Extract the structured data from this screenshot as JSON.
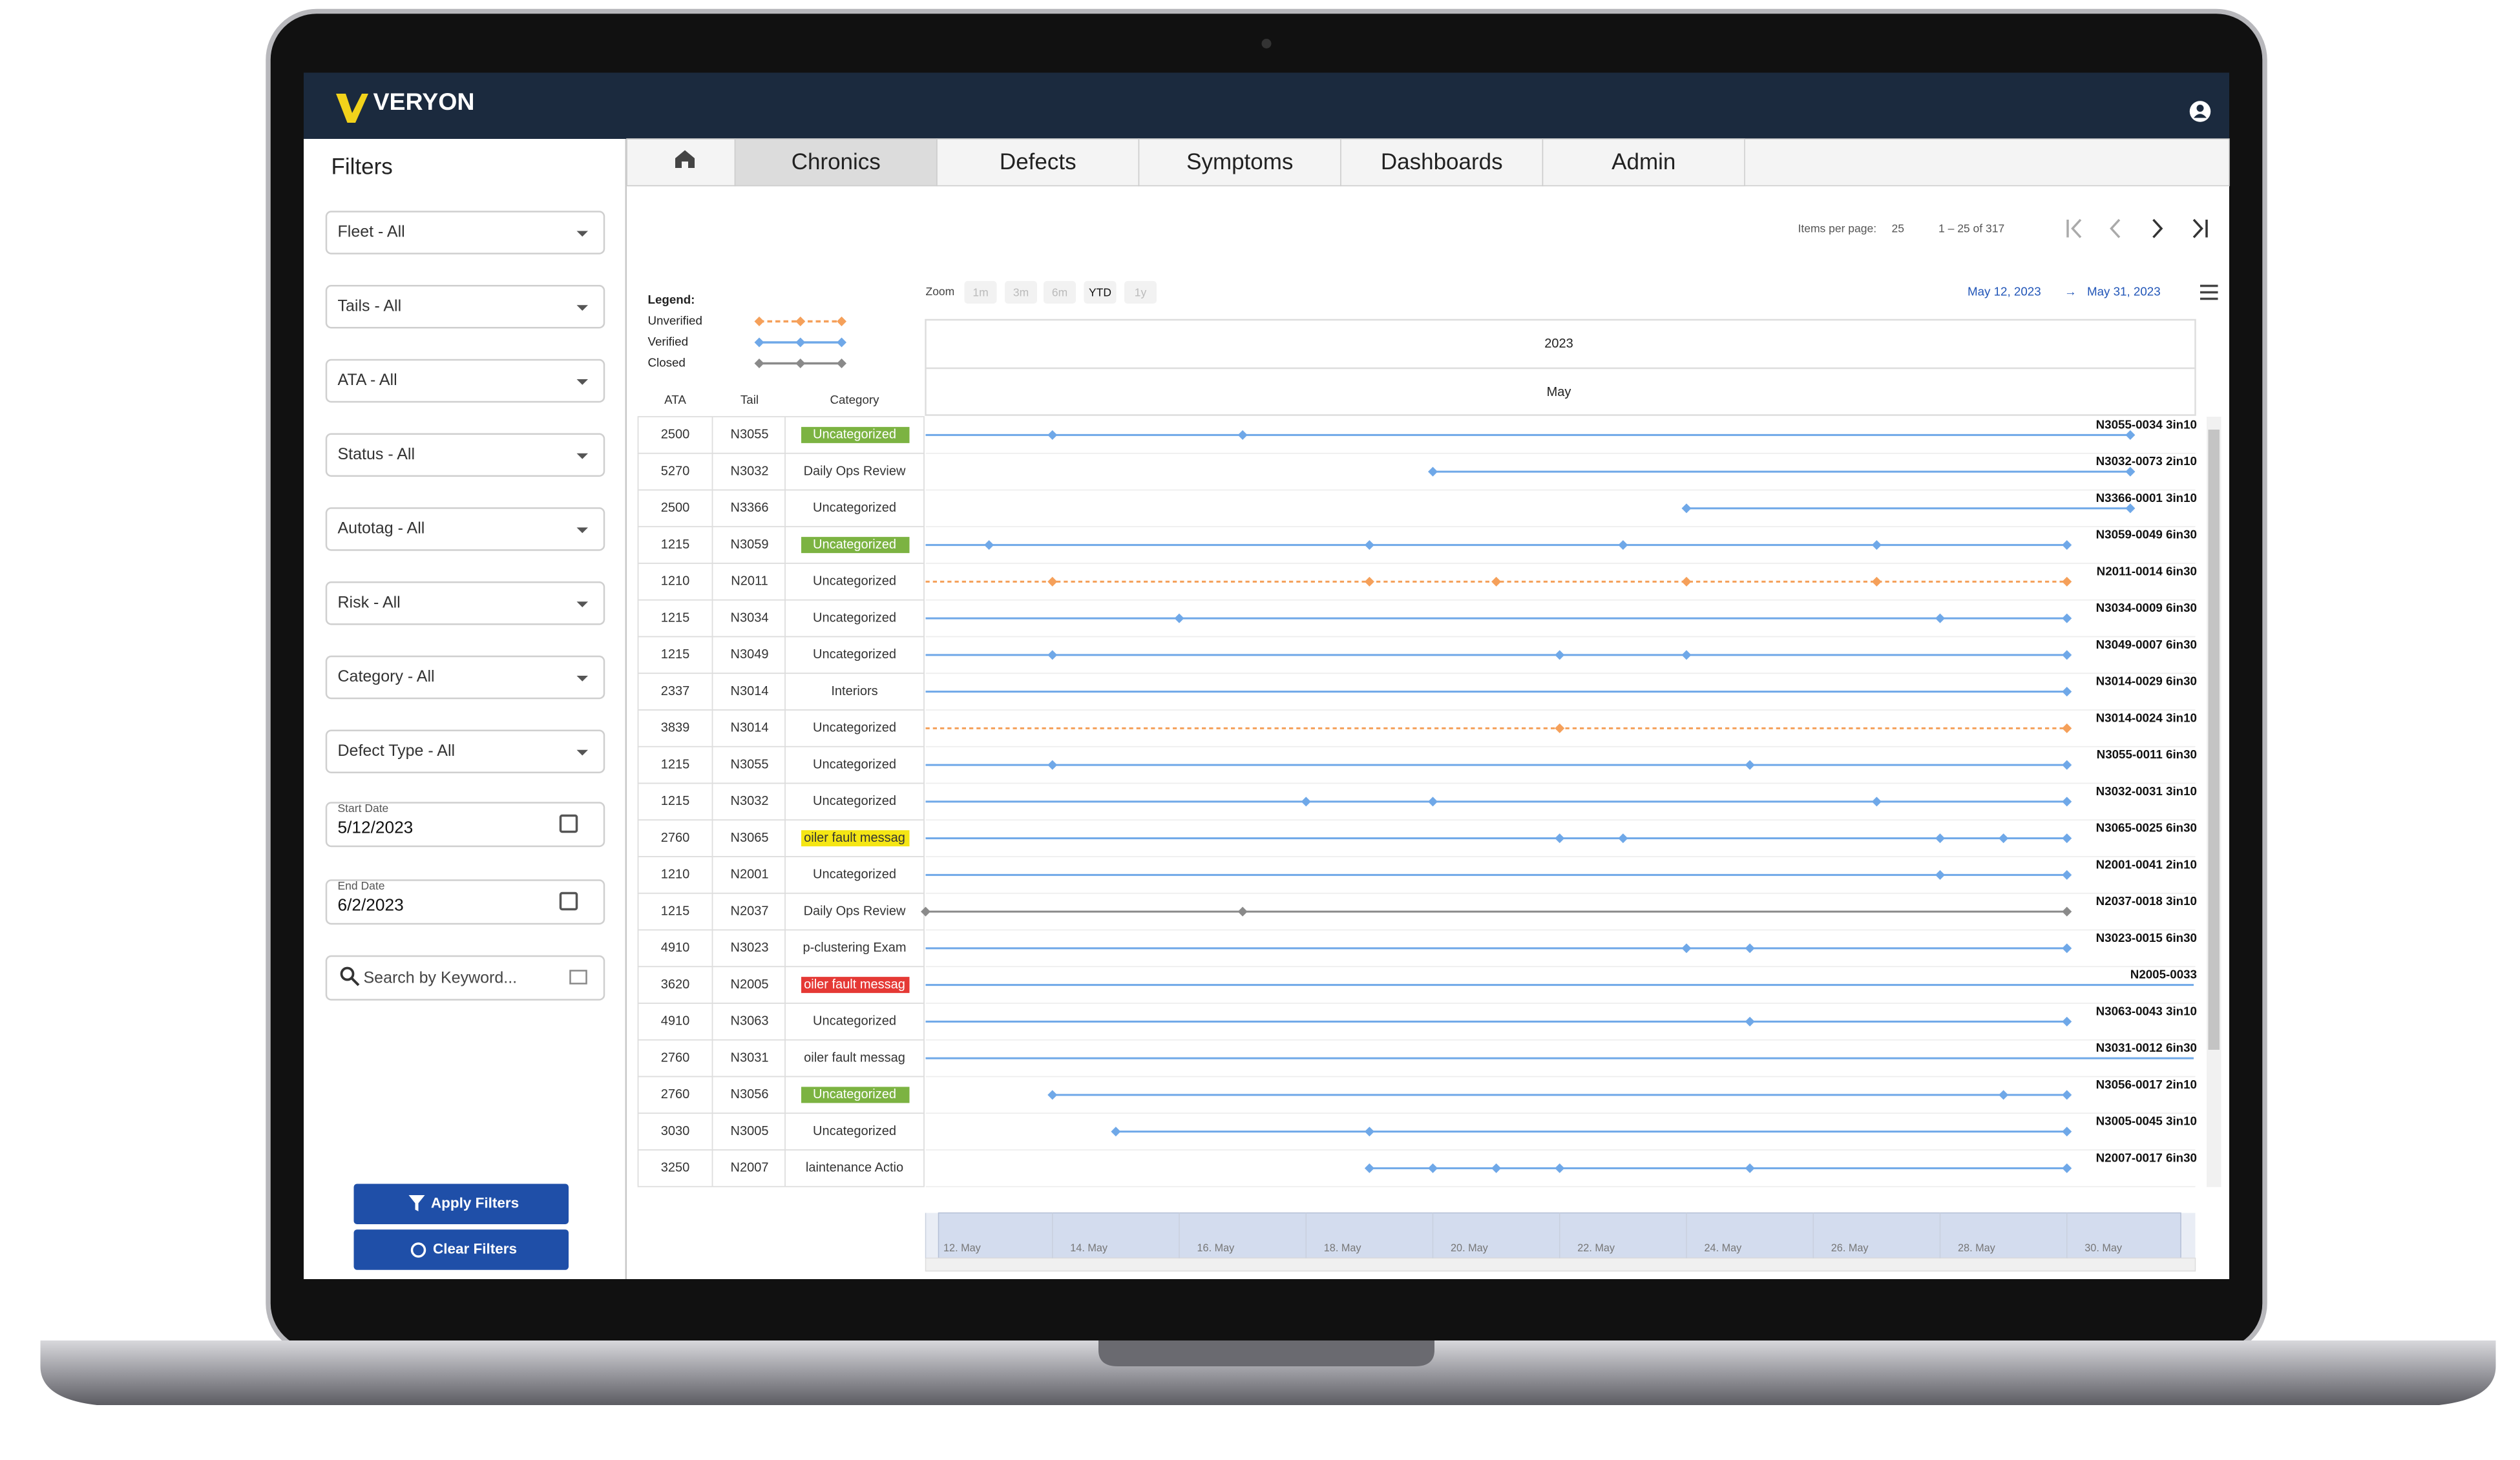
{
  "header": {
    "brand": "VERYON"
  },
  "sidebar": {
    "title": "Filters",
    "filters": [
      "Fleet - All",
      "Tails - All",
      "ATA - All",
      "Status - All",
      "Autotag - All",
      "Risk - All",
      "Category - All",
      "Defect Type - All"
    ],
    "start_date": {
      "label": "Start Date",
      "value": "5/12/2023"
    },
    "end_date": {
      "label": "End Date",
      "value": "6/2/2023"
    },
    "search_placeholder": "Search by Keyword...",
    "buttons": [
      "Apply Filters",
      "Clear Filters"
    ]
  },
  "tabs": {
    "items": [
      "Chronics",
      "Defects",
      "Symptoms",
      "Dashboards",
      "Admin"
    ],
    "selected": 0
  },
  "pagination": {
    "items_per_page_label": "Items per page:",
    "items_per_page": 25,
    "range": "1 – 25 of 317"
  },
  "chart_data": {
    "type": "timeline",
    "legend_title": "Legend:",
    "legend": [
      {
        "name": "Unverified",
        "color": "#f5a05a",
        "dashed": true
      },
      {
        "name": "Verified",
        "color": "#6fa8e8",
        "dashed": false
      },
      {
        "name": "Closed",
        "color": "#8a8a8a",
        "dashed": false
      }
    ],
    "zoom_label": "Zoom",
    "zoom_options": [
      "1m",
      "3m",
      "6m",
      "YTD",
      "1y"
    ],
    "zoom_selected": 3,
    "range_start": "May 12, 2023",
    "range_separator": "→",
    "range_end": "May 31, 2023",
    "year": "2023",
    "month": "May",
    "columns": [
      "ATA",
      "Tail",
      "Category"
    ],
    "xlim": [
      12,
      32
    ],
    "xticks": [
      {
        "value": 12,
        "label": "12. May"
      },
      {
        "value": 14,
        "label": "14. May"
      },
      {
        "value": 16,
        "label": "16. May"
      },
      {
        "value": 18,
        "label": "18. May"
      },
      {
        "value": 20,
        "label": "20. May"
      },
      {
        "value": 22,
        "label": "22. May"
      },
      {
        "value": 24,
        "label": "24. May"
      },
      {
        "value": 26,
        "label": "26. May"
      },
      {
        "value": 28,
        "label": "28. May"
      },
      {
        "value": 30,
        "label": "30. May"
      }
    ],
    "rows": [
      {
        "ata": "2500",
        "tail": "N3055",
        "category": "Uncategorized",
        "category_color": "#7cb342",
        "label": "N3055-0034 3in10",
        "status": 1,
        "span": [
          12,
          31
        ],
        "points": [
          14,
          17,
          31
        ]
      },
      {
        "ata": "5270",
        "tail": "N3032",
        "category": "Daily Ops Review",
        "label": "N3032-0073 2in10",
        "status": 1,
        "span": [
          20,
          31
        ],
        "points": [
          20,
          31
        ]
      },
      {
        "ata": "2500",
        "tail": "N3366",
        "category": "Uncategorized",
        "label": "N3366-0001 3in10",
        "status": 1,
        "span": [
          24,
          31
        ],
        "points": [
          24,
          31
        ]
      },
      {
        "ata": "1215",
        "tail": "N3059",
        "category": "Uncategorized",
        "category_color": "#7cb342",
        "label": "N3059-0049 6in30",
        "status": 1,
        "span": [
          12,
          30
        ],
        "points": [
          13,
          19,
          23,
          27,
          30
        ]
      },
      {
        "ata": "1210",
        "tail": "N2011",
        "category": "Uncategorized",
        "label": "N2011-0014 6in30",
        "status": 0,
        "span": [
          12,
          30
        ],
        "points": [
          14,
          19,
          21,
          24,
          27,
          30
        ]
      },
      {
        "ata": "1215",
        "tail": "N3034",
        "category": "Uncategorized",
        "label": "N3034-0009 6in30",
        "status": 1,
        "span": [
          12,
          30
        ],
        "points": [
          16,
          28,
          30
        ]
      },
      {
        "ata": "1215",
        "tail": "N3049",
        "category": "Uncategorized",
        "label": "N3049-0007 6in30",
        "status": 1,
        "span": [
          12,
          30
        ],
        "points": [
          14,
          22,
          24,
          30
        ]
      },
      {
        "ata": "2337",
        "tail": "N3014",
        "category": "Interiors",
        "label": "N3014-0029 6in30",
        "status": 1,
        "span": [
          12,
          30
        ],
        "points": [
          30
        ]
      },
      {
        "ata": "3839",
        "tail": "N3014",
        "category": "Uncategorized",
        "label": "N3014-0024 3in10",
        "status": 0,
        "span": [
          12,
          30
        ],
        "points": [
          22,
          30
        ]
      },
      {
        "ata": "1215",
        "tail": "N3055",
        "category": "Uncategorized",
        "label": "N3055-0011 6in30",
        "status": 1,
        "span": [
          12,
          30
        ],
        "points": [
          14,
          25,
          30
        ]
      },
      {
        "ata": "1215",
        "tail": "N3032",
        "category": "Uncategorized",
        "label": "N3032-0031 3in10",
        "status": 1,
        "span": [
          12,
          30
        ],
        "points": [
          18,
          20,
          27,
          30
        ]
      },
      {
        "ata": "2760",
        "tail": "N3065",
        "category": "oiler fault messag",
        "category_color": "#f5e614",
        "label": "N3065-0025 6in30",
        "status": 1,
        "span": [
          12,
          30
        ],
        "points": [
          22,
          23,
          28,
          29,
          30
        ]
      },
      {
        "ata": "1210",
        "tail": "N2001",
        "category": "Uncategorized",
        "label": "N2001-0041 2in10",
        "status": 1,
        "span": [
          12,
          30
        ],
        "points": [
          28,
          30
        ]
      },
      {
        "ata": "1215",
        "tail": "N2037",
        "category": "Daily Ops Review",
        "label": "N2037-0018 3in10",
        "status": 2,
        "span": [
          12,
          30
        ],
        "points": [
          12,
          17,
          30
        ]
      },
      {
        "ata": "4910",
        "tail": "N3023",
        "category": "p-clustering Exam",
        "label": "N3023-0015 6in30",
        "status": 1,
        "span": [
          12,
          30
        ],
        "points": [
          24,
          25,
          30
        ]
      },
      {
        "ata": "3620",
        "tail": "N2005",
        "category": "oiler fault messag",
        "category_color": "#e53935",
        "label": "N2005-0033",
        "status": 1,
        "span": [
          12,
          32
        ],
        "points": []
      },
      {
        "ata": "4910",
        "tail": "N3063",
        "category": "Uncategorized",
        "label": "N3063-0043 3in10",
        "status": 1,
        "span": [
          12,
          30
        ],
        "points": [
          25,
          30
        ]
      },
      {
        "ata": "2760",
        "tail": "N3031",
        "category": "oiler fault messag",
        "label": "N3031-0012 6in30",
        "status": 1,
        "span": [
          12,
          32
        ],
        "points": []
      },
      {
        "ata": "2760",
        "tail": "N3056",
        "category": "Uncategorized",
        "category_color": "#7cb342",
        "label": "N3056-0017 2in10",
        "status": 1,
        "span": [
          14,
          30
        ],
        "points": [
          14,
          29,
          30
        ]
      },
      {
        "ata": "3030",
        "tail": "N3005",
        "category": "Uncategorized",
        "label": "N3005-0045 3in10",
        "status": 1,
        "span": [
          15,
          30
        ],
        "points": [
          15,
          19,
          30
        ]
      },
      {
        "ata": "3250",
        "tail": "N2007",
        "category": "laintenance Actio",
        "label": "N2007-0017 6in30",
        "status": 1,
        "span": [
          19,
          30
        ],
        "points": [
          19,
          20,
          21,
          22,
          25,
          30
        ]
      }
    ]
  }
}
